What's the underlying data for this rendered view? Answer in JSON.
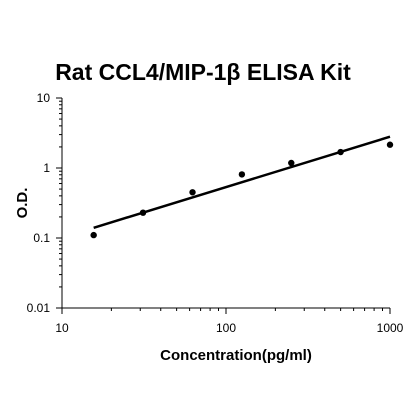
{
  "chart_data": {
    "type": "scatter",
    "title": "Rat CCL4/MIP-1β ELISA Kit",
    "xlabel": "Concentration(pg/ml)",
    "ylabel": "O.D.",
    "x_scale": "log",
    "y_scale": "log",
    "xlim": [
      10,
      1000
    ],
    "ylim": [
      0.01,
      10
    ],
    "x_ticks": [
      "10",
      "100",
      "1000"
    ],
    "y_ticks": [
      "10",
      "1",
      "0.1",
      "0.01"
    ],
    "grid": false,
    "legend": "none",
    "series": [
      {
        "points": [
          {
            "x": 15.6,
            "y": 0.11
          },
          {
            "x": 31.2,
            "y": 0.23
          },
          {
            "x": 62.5,
            "y": 0.45
          },
          {
            "x": 125,
            "y": 0.81
          },
          {
            "x": 250,
            "y": 1.18
          },
          {
            "x": 500,
            "y": 1.69
          },
          {
            "x": 1000,
            "y": 2.15
          }
        ],
        "color": "#000000"
      }
    ],
    "trendline": {
      "type": "power",
      "points": [
        {
          "x": 15.6,
          "y": 0.14
        },
        {
          "x": 1000,
          "y": 2.8
        }
      ],
      "color": "#000000"
    }
  }
}
